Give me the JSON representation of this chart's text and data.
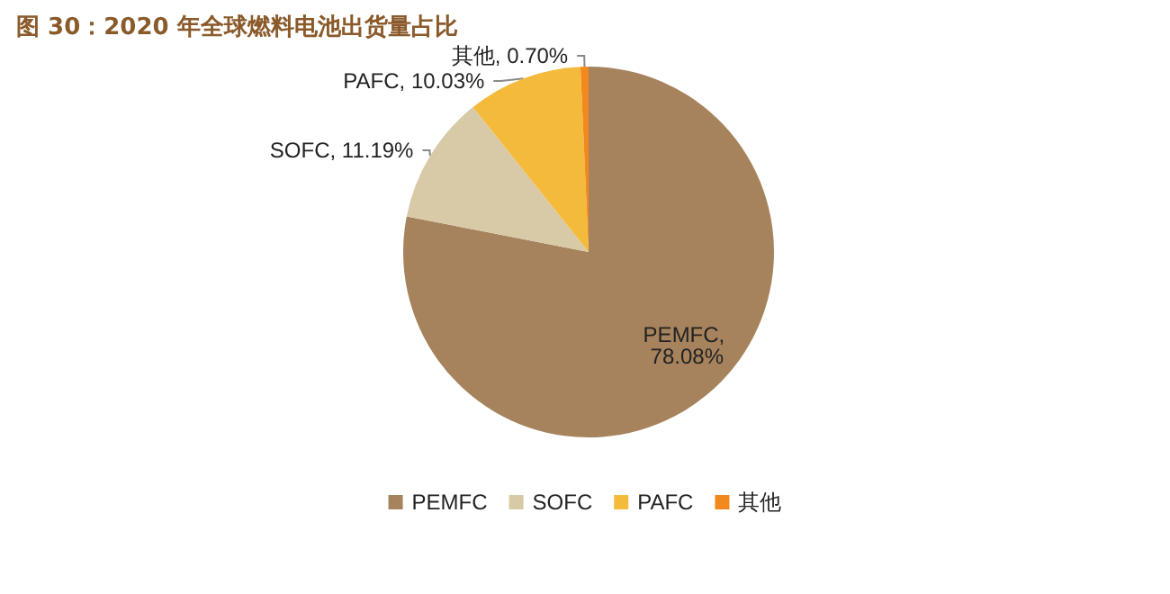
{
  "chart_data": {
    "type": "pie",
    "title": "图 30：2020 年全球燃料电池出货量占比",
    "categories": [
      "PEMFC",
      "SOFC",
      "PAFC",
      "其他"
    ],
    "values": [
      78.08,
      11.19,
      10.03,
      0.7
    ],
    "value_labels": [
      "PEMFC, 78.08%",
      "SOFC, 11.19%",
      "PAFC, 10.03%",
      "其他, 0.70%"
    ],
    "colors": [
      "#a6835c",
      "#d8c9a7",
      "#f4ba3c",
      "#f2891c"
    ],
    "legend": "bottom"
  }
}
